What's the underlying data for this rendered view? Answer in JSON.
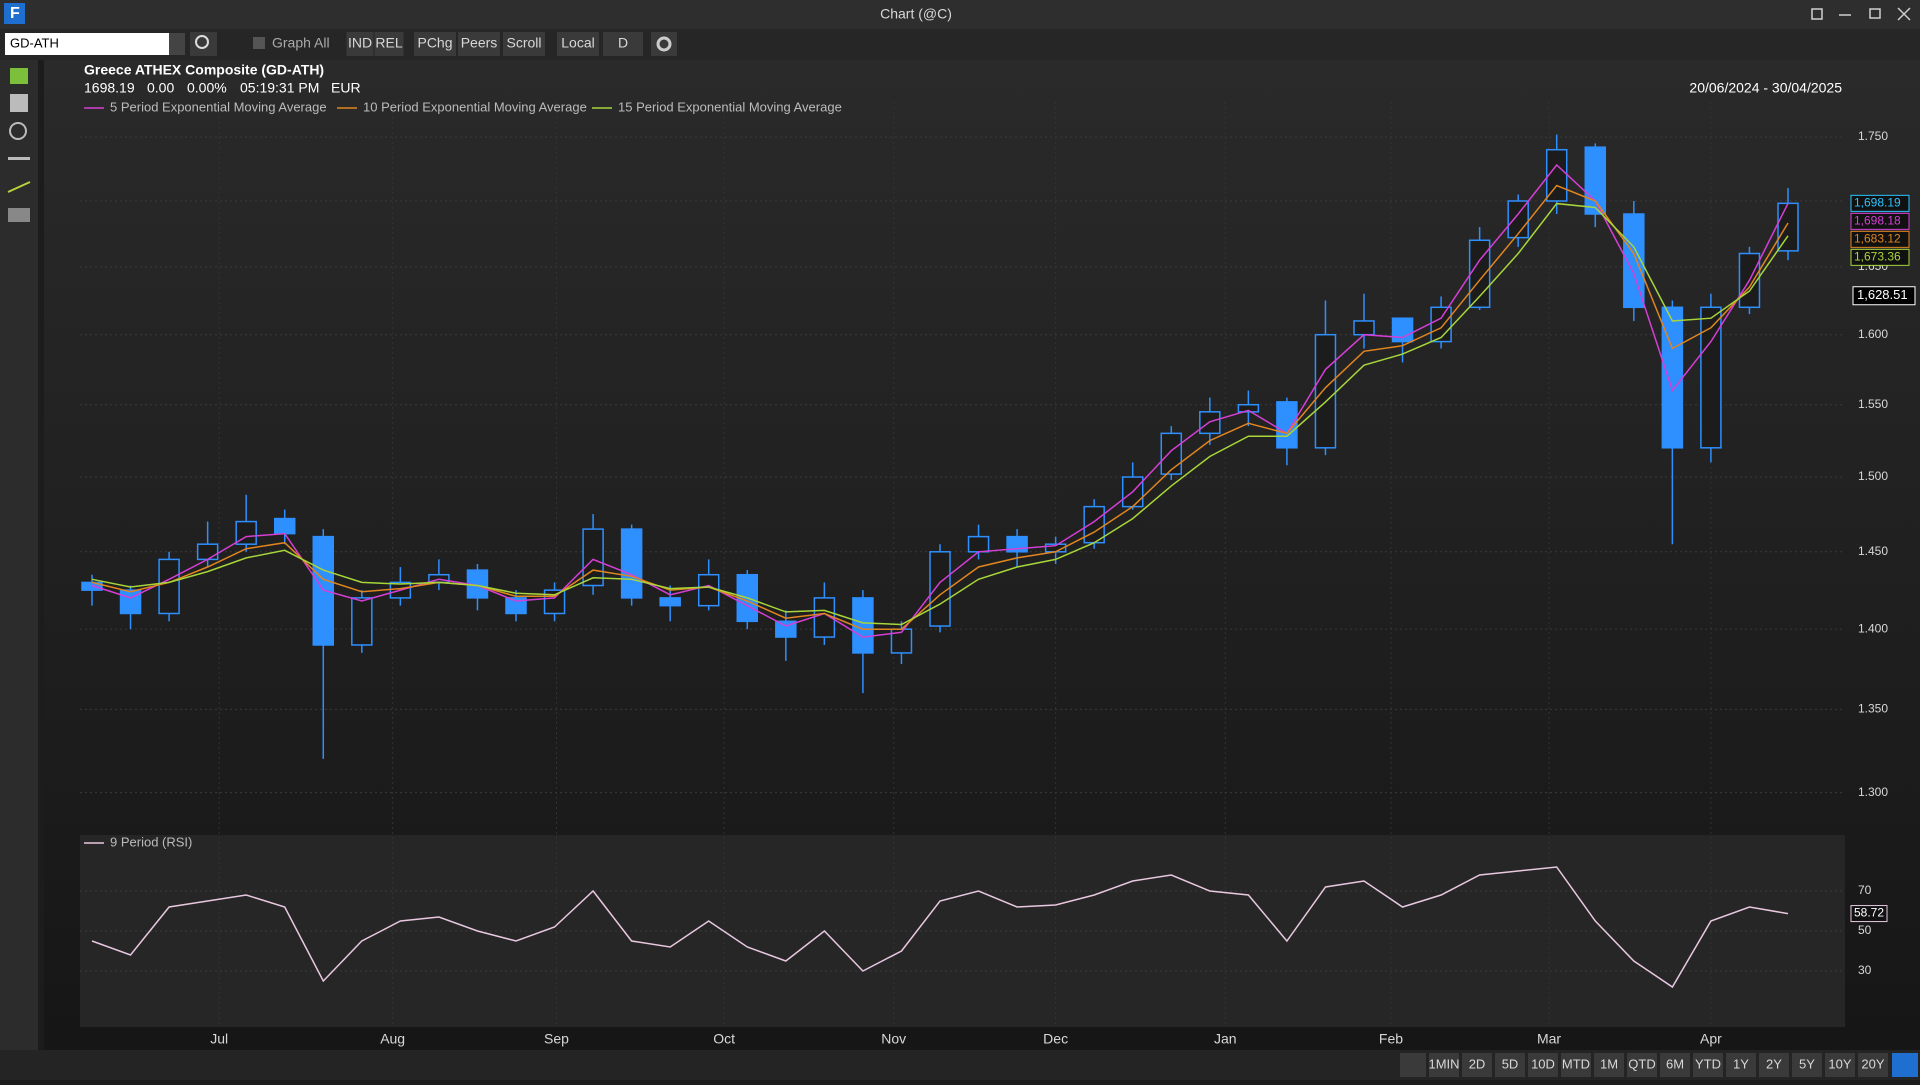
{
  "window": {
    "title": "Chart (@C)"
  },
  "toolbar": {
    "symbol": "GD-ATH",
    "graph_all": "Graph All",
    "buttons": [
      "IND",
      "REL",
      "PChg",
      "Peers",
      "Scroll",
      "Local",
      "D"
    ]
  },
  "chart": {
    "type": "candlestick",
    "title": "Greece ATHEX Composite (GD-ATH)",
    "quote": [
      "1698.19",
      "0.00",
      "0.00%",
      "05:19:31 PM",
      "EUR"
    ],
    "date_range": "20/06/2024 - 30/04/2025",
    "xticks": [
      {
        "value": 3.3,
        "label": "Jul"
      },
      {
        "value": 7.8,
        "label": "Aug"
      },
      {
        "value": 12.05,
        "label": "Sep"
      },
      {
        "value": 16.4,
        "label": "Oct"
      },
      {
        "value": 20.8,
        "label": "Nov"
      },
      {
        "value": 25.0,
        "label": "Dec"
      },
      {
        "value": 29.4,
        "label": "Jan"
      },
      {
        "value": 33.7,
        "label": "Feb"
      },
      {
        "value": 37.8,
        "label": "Mar"
      },
      {
        "value": 42.0,
        "label": "Apr"
      }
    ],
    "xlim": [
      0,
      44
    ],
    "color": "#2e8fff",
    "open": [
      1430,
      1425,
      1410,
      1445,
      1455,
      1472,
      1460,
      1390,
      1420,
      1430,
      1438,
      1420,
      1410,
      1428,
      1465,
      1420,
      1415,
      1435,
      1405,
      1395,
      1420,
      1385,
      1402,
      1450,
      1460,
      1450,
      1456,
      1480,
      1502,
      1530,
      1545,
      1552,
      1520,
      1600,
      1612,
      1595,
      1620,
      1672,
      1700,
      1742,
      1690,
      1620,
      1520,
      1620,
      1662
    ],
    "high": [
      1435,
      1428,
      1450,
      1470,
      1488,
      1478,
      1465,
      1425,
      1440,
      1445,
      1442,
      1425,
      1430,
      1475,
      1468,
      1428,
      1445,
      1438,
      1412,
      1430,
      1425,
      1405,
      1455,
      1468,
      1465,
      1460,
      1485,
      1510,
      1535,
      1555,
      1560,
      1555,
      1625,
      1630,
      1612,
      1628,
      1680,
      1705,
      1752,
      1745,
      1700,
      1625,
      1630,
      1665,
      1710
    ],
    "low": [
      1415,
      1400,
      1405,
      1440,
      1450,
      1455,
      1320,
      1385,
      1415,
      1425,
      1412,
      1405,
      1405,
      1422,
      1415,
      1405,
      1412,
      1400,
      1380,
      1390,
      1360,
      1378,
      1398,
      1445,
      1440,
      1442,
      1452,
      1478,
      1498,
      1522,
      1535,
      1508,
      1515,
      1590,
      1580,
      1590,
      1618,
      1665,
      1690,
      1680,
      1610,
      1455,
      1510,
      1615,
      1655
    ],
    "close": [
      1425,
      1410,
      1445,
      1455,
      1470,
      1462,
      1390,
      1420,
      1430,
      1435,
      1420,
      1410,
      1425,
      1465,
      1420,
      1415,
      1435,
      1405,
      1395,
      1420,
      1385,
      1400,
      1450,
      1460,
      1450,
      1455,
      1480,
      1500,
      1530,
      1545,
      1550,
      1520,
      1600,
      1610,
      1595,
      1620,
      1670,
      1700,
      1740,
      1690,
      1620,
      1520,
      1620,
      1660,
      1698.19
    ],
    "series": [
      {
        "name": "5 Period Exponential Moving Average",
        "color": "#d63fd6",
        "values": [
          1428,
          1420,
          1432,
          1445,
          1460,
          1462,
          1425,
          1418,
          1425,
          1432,
          1428,
          1418,
          1420,
          1445,
          1435,
          1422,
          1428,
          1415,
          1402,
          1410,
          1395,
          1398,
          1430,
          1450,
          1452,
          1454,
          1470,
          1490,
          1518,
          1538,
          1546,
          1530,
          1575,
          1600,
          1598,
          1612,
          1655,
          1690,
          1728,
          1700,
          1645,
          1560,
          1595,
          1640,
          1698.18
        ]
      },
      {
        "name": "10 Period Exponential Moving Average",
        "color": "#e0851f",
        "values": [
          1430,
          1424,
          1430,
          1440,
          1452,
          1456,
          1432,
          1424,
          1426,
          1430,
          1428,
          1421,
          1421,
          1438,
          1434,
          1425,
          1427,
          1418,
          1407,
          1410,
          1400,
          1400,
          1422,
          1440,
          1446,
          1450,
          1463,
          1480,
          1505,
          1525,
          1537,
          1530,
          1562,
          1588,
          1592,
          1605,
          1640,
          1675,
          1712,
          1700,
          1660,
          1590,
          1605,
          1635,
          1683.12
        ]
      },
      {
        "name": "15 Period Exponential Moving Average",
        "color": "#a8d63a",
        "values": [
          1432,
          1427,
          1430,
          1437,
          1446,
          1451,
          1438,
          1430,
          1429,
          1430,
          1428,
          1423,
          1422,
          1433,
          1432,
          1426,
          1427,
          1420,
          1411,
          1412,
          1404,
          1403,
          1416,
          1432,
          1440,
          1445,
          1456,
          1472,
          1494,
          1514,
          1528,
          1528,
          1552,
          1578,
          1586,
          1598,
          1628,
          1660,
          1698,
          1695,
          1665,
          1610,
          1612,
          1632,
          1673.36
        ]
      }
    ],
    "last_labels": [
      {
        "value": 1698.19,
        "label": "1,698.19",
        "color": "#29c4ff"
      },
      {
        "value": 1698.18,
        "label": "1,698.18",
        "color": "#d63fd6"
      },
      {
        "value": 1683.12,
        "label": "1,683.12",
        "color": "#e0851f"
      },
      {
        "value": 1673.36,
        "label": "1,673.36",
        "color": "#a8d63a"
      }
    ],
    "crosshair": {
      "value": 1628.51,
      "label": "1,628.51"
    },
    "log": true,
    "ylim": [
      1298,
      1762
    ],
    "yticks": [
      {
        "value": 1300,
        "label": "1.300"
      },
      {
        "value": 1350,
        "label": "1.350"
      },
      {
        "value": 1400,
        "label": "1.400"
      },
      {
        "value": 1450,
        "label": "1.450"
      },
      {
        "value": 1500,
        "label": "1.500"
      },
      {
        "value": 1550,
        "label": "1.550"
      },
      {
        "value": 1600,
        "label": "1.600"
      },
      {
        "value": 1650,
        "label": "1.650"
      },
      {
        "value": 1700,
        "label": "1.700"
      },
      {
        "value": 1750,
        "label": "1.750"
      }
    ],
    "rsi": {
      "name": "9 Period (RSI)",
      "color": "#e8c8e0",
      "values": [
        45,
        38,
        62,
        65,
        68,
        62,
        25,
        45,
        55,
        57,
        50,
        45,
        52,
        70,
        45,
        42,
        55,
        42,
        35,
        50,
        30,
        40,
        65,
        70,
        62,
        63,
        68,
        75,
        78,
        70,
        68,
        45,
        72,
        75,
        62,
        68,
        78,
        80,
        82,
        55,
        35,
        22,
        55,
        62,
        58.72
      ],
      "ylim": [
        0,
        100
      ],
      "yticks": [
        30,
        50,
        70
      ],
      "last_label": {
        "value": 58.72,
        "label": "58.72"
      }
    }
  },
  "periods": [
    "1MIN",
    "2D",
    "5D",
    "10D",
    "MTD",
    "1M",
    "QTD",
    "6M",
    "YTD",
    "1Y",
    "2Y",
    "5Y",
    "10Y",
    "20Y"
  ]
}
